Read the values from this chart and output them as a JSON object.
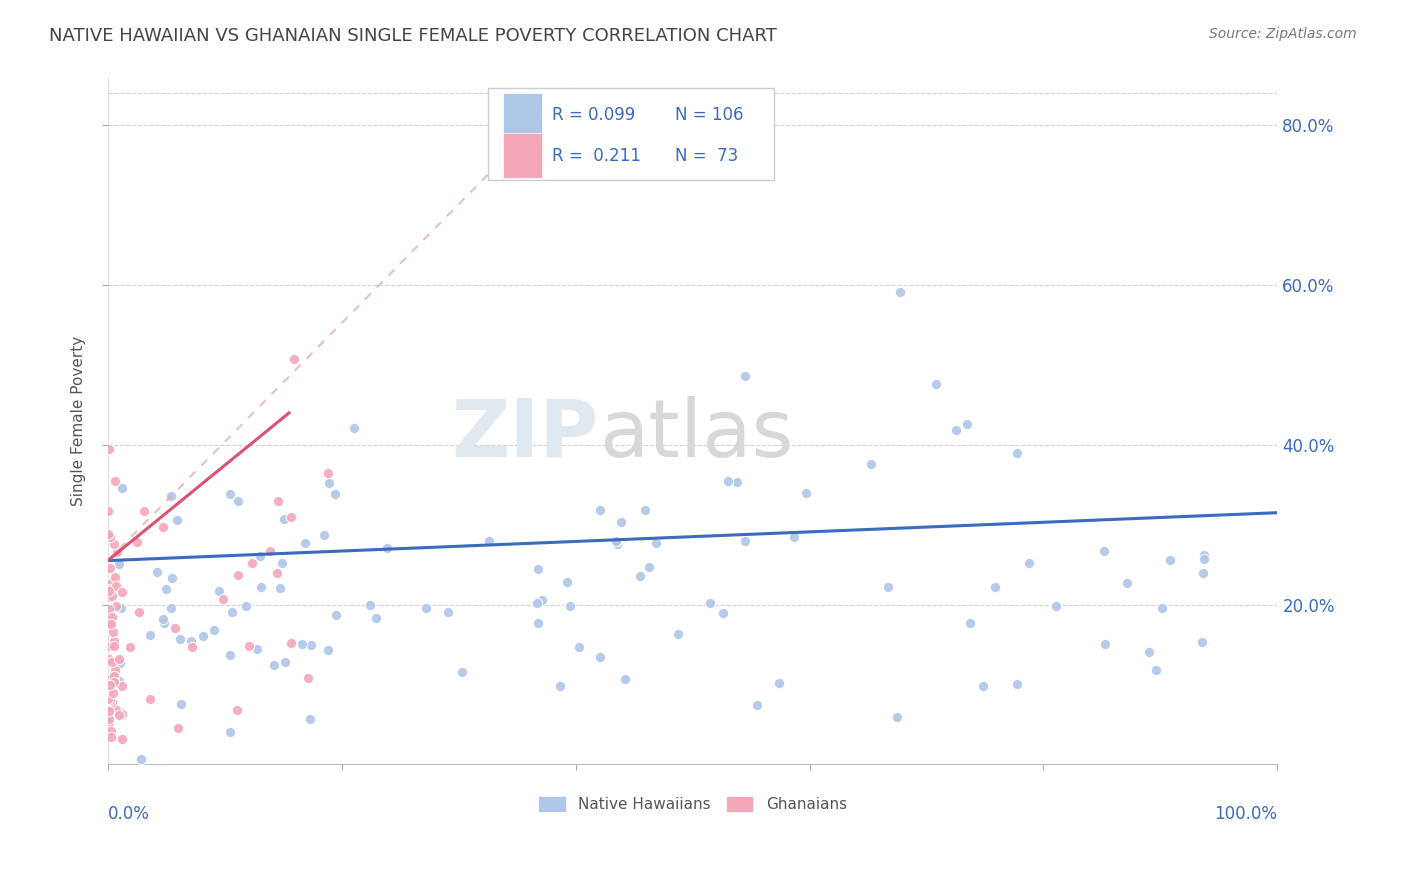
{
  "title": "NATIVE HAWAIIAN VS GHANAIAN SINGLE FEMALE POVERTY CORRELATION CHART",
  "source": "Source: ZipAtlas.com",
  "ylabel": "Single Female Poverty",
  "legend_labels": [
    "Native Hawaiians",
    "Ghanaians"
  ],
  "nh_color": "#aec6e8",
  "gh_color": "#f4a7b9",
  "nh_line_color": "#3a6bbf",
  "gh_line_color": "#d9546e",
  "gh_dashed_color": "#e8a0b0",
  "R_nh": 0.099,
  "N_nh": 106,
  "R_gh": 0.211,
  "N_gh": 73,
  "background_color": "#ffffff",
  "grid_color": "#cccccc",
  "title_color": "#555555",
  "legend_R_color": "#3a6bbf",
  "xlim": [
    0.0,
    1.0
  ],
  "ylim": [
    0.0,
    0.86
  ]
}
